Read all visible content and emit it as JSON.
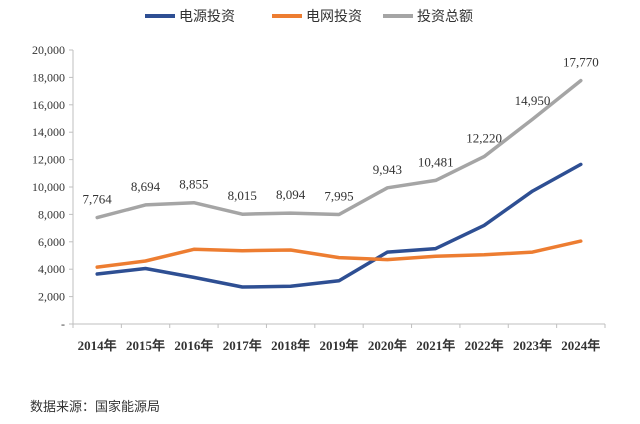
{
  "chart_data": {
    "type": "line",
    "title": "",
    "xlabel": "",
    "ylabel": "",
    "categories": [
      "2014年",
      "2015年",
      "2016年",
      "2017年",
      "2018年",
      "2019年",
      "2020年",
      "2021年",
      "2022年",
      "2023年",
      "2024年"
    ],
    "ylim": [
      0,
      20000
    ],
    "yticks": [
      0,
      2000,
      4000,
      6000,
      8000,
      10000,
      12000,
      14000,
      16000,
      18000,
      20000
    ],
    "ytick_labels": [
      "-",
      "2,000",
      "4,000",
      "6,000",
      "8,000",
      "10,000",
      "12,000",
      "14,000",
      "16,000",
      "18,000",
      "20,000"
    ],
    "grid": false,
    "legend_position": "top",
    "series": [
      {
        "name": "电源投资",
        "color": "#2e4f93",
        "values": [
          3650,
          4050,
          3400,
          2700,
          2750,
          3150,
          5250,
          5500,
          7200,
          9700,
          11650
        ]
      },
      {
        "name": "电网投资",
        "color": "#ed7d31",
        "values": [
          4150,
          4600,
          5450,
          5350,
          5400,
          4850,
          4700,
          4950,
          5050,
          5250,
          6050
        ]
      },
      {
        "name": "投资总额",
        "color": "#a5a5a5",
        "values": [
          7764,
          8694,
          8855,
          8015,
          8094,
          7995,
          9943,
          10481,
          12220,
          14950,
          17770
        ],
        "data_labels": [
          "7,764",
          "8,694",
          "8,855",
          "8,015",
          "8,094",
          "7,995",
          "9,943",
          "10,481",
          "12,220",
          "14,950",
          "17,770"
        ]
      }
    ]
  },
  "source": "数据来源：国家能源局"
}
